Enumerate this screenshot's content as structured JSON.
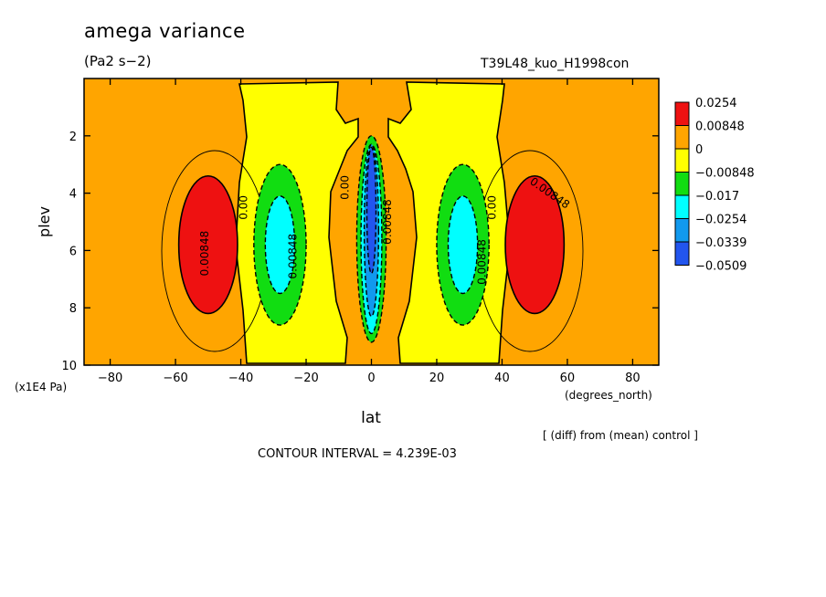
{
  "header": {
    "title": "amega variance",
    "units": "(Pa2 s−2)",
    "run_id": "T39L48_kuo_H1998con"
  },
  "footer": {
    "diff_note": "[ (diff) from (mean) control ]",
    "contour_interval": "CONTOUR INTERVAL = 4.239E-03"
  },
  "colors": {
    "red": "#ee1111",
    "orange": "#ffa500",
    "yellow": "#ffff00",
    "green": "#11dd11",
    "cyan": "#00ffff",
    "blue1": "#1199ee",
    "blue2": "#2255ee"
  },
  "chart_data": {
    "type": "heatmap",
    "subtype": "filled contour",
    "xlabel": "lat",
    "xunits": "(degrees_north)",
    "ylabel": "plev",
    "yunits": "(x1E4 Pa)",
    "xlim": [
      -88,
      88
    ],
    "ylim": [
      10,
      0
    ],
    "xticks": [
      -80,
      -60,
      -40,
      -20,
      0,
      20,
      40,
      60,
      80
    ],
    "yticks": [
      2,
      4,
      6,
      8,
      10
    ],
    "grid": false,
    "legend_position": "right",
    "levels": [
      {
        "label": "0.0254",
        "color": "#ee1111"
      },
      {
        "label": "0.00848",
        "color": "#ffa500"
      },
      {
        "label": "0",
        "color": "#ffff00"
      },
      {
        "label": "−0.00848",
        "color": "#11dd11"
      },
      {
        "label": "−0.017",
        "color": "#00ffff"
      },
      {
        "label": "−0.0254",
        "color": "#1199ee"
      },
      {
        "label": "−0.0339",
        "color": "#2255ee"
      },
      {
        "label": "−0.0509",
        "color": "#2255ee"
      }
    ],
    "background_color": "#ffa500",
    "regions": [
      {
        "name": "left-positive-max",
        "lat": -50,
        "plev": 5.8,
        "lat_halfwidth": 9,
        "plev_halfheight": 2.4,
        "color": "#ee1111",
        "outline": "solid"
      },
      {
        "name": "right-positive-max",
        "lat": 50,
        "plev": 5.8,
        "lat_halfwidth": 9,
        "plev_halfheight": 2.4,
        "color": "#ee1111",
        "outline": "solid"
      },
      {
        "name": "left-negative-green",
        "lat": -28,
        "plev": 5.8,
        "lat_halfwidth": 8,
        "plev_halfheight": 2.8,
        "color": "#11dd11",
        "outline": "dashed"
      },
      {
        "name": "right-negative-green",
        "lat": 28,
        "plev": 5.8,
        "lat_halfwidth": 8,
        "plev_halfheight": 2.8,
        "color": "#11dd11",
        "outline": "dashed"
      },
      {
        "name": "left-negative-cyan",
        "lat": -28,
        "plev": 5.8,
        "lat_halfwidth": 4.5,
        "plev_halfheight": 1.7,
        "color": "#00ffff",
        "outline": "dashed"
      },
      {
        "name": "right-negative-cyan",
        "lat": 28,
        "plev": 5.8,
        "lat_halfwidth": 4.5,
        "plev_halfheight": 1.7,
        "color": "#00ffff",
        "outline": "dashed"
      },
      {
        "name": "equatorial-green",
        "lat": 0,
        "plev": 5.6,
        "lat_halfwidth": 4.5,
        "plev_halfheight": 3.6,
        "color": "#11dd11",
        "outline": "dashed"
      },
      {
        "name": "equatorial-cyan",
        "lat": 0,
        "plev": 5.6,
        "lat_halfwidth": 3.2,
        "plev_halfheight": 3.3,
        "color": "#00ffff",
        "outline": "dashed"
      },
      {
        "name": "equatorial-blue",
        "lat": 0,
        "plev": 5.3,
        "lat_halfwidth": 2.2,
        "plev_halfheight": 3.0,
        "color": "#1199ee",
        "outline": "dashed"
      },
      {
        "name": "equatorial-deep-blue",
        "lat": 0,
        "plev": 4.6,
        "lat_halfwidth": 1.4,
        "plev_halfheight": 2.2,
        "color": "#2255ee",
        "outline": "dashed"
      }
    ],
    "contour_labels": [
      {
        "text": "0.00848",
        "lat": -50,
        "plev": 6.1,
        "angle": -90
      },
      {
        "text": "0.00848",
        "lat": -23,
        "plev": 6.2,
        "angle": -90
      },
      {
        "text": "0.00",
        "lat": -38,
        "plev": 4.5,
        "angle": -90
      },
      {
        "text": "0.00",
        "lat": -7,
        "plev": 3.8,
        "angle": -90
      },
      {
        "text": "0.00848",
        "lat": 6,
        "plev": 5.0,
        "angle": -90
      },
      {
        "text": "0.00848",
        "lat": 35,
        "plev": 6.4,
        "angle": -90
      },
      {
        "text": "0.00",
        "lat": 38,
        "plev": 4.5,
        "angle": -90
      },
      {
        "text": "0.00848",
        "lat": 54,
        "plev": 4.1,
        "angle": 35
      }
    ]
  }
}
